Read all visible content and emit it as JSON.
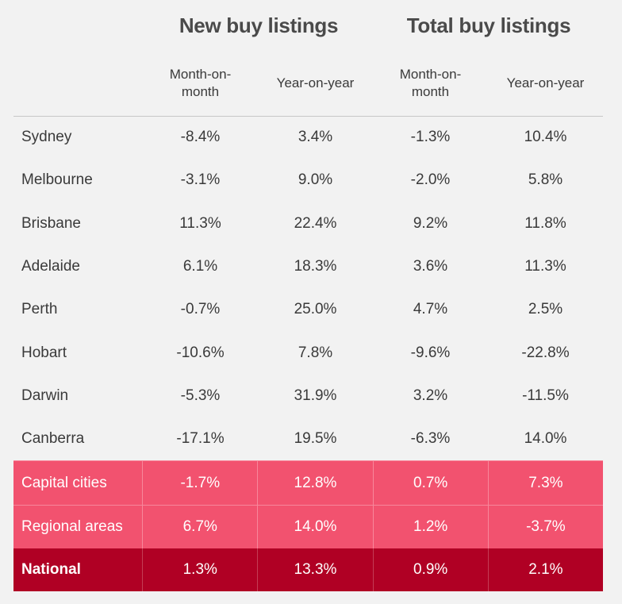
{
  "chart_data": {
    "type": "table",
    "group_headers": [
      "New buy listings",
      "Total buy listings"
    ],
    "sub_headers": [
      "Month-on-\nmonth",
      "Year-on-year",
      "Month-on-\nmonth",
      "Year-on-year"
    ],
    "rows": [
      {
        "label": "Sydney",
        "values": [
          "-8.4%",
          "3.4%",
          "-1.3%",
          "10.4%"
        ],
        "style": "plain"
      },
      {
        "label": "Melbourne",
        "values": [
          "-3.1%",
          "9.0%",
          "-2.0%",
          "5.8%"
        ],
        "style": "plain"
      },
      {
        "label": "Brisbane",
        "values": [
          "11.3%",
          "22.4%",
          "9.2%",
          "11.8%"
        ],
        "style": "plain"
      },
      {
        "label": "Adelaide",
        "values": [
          "6.1%",
          "18.3%",
          "3.6%",
          "11.3%"
        ],
        "style": "plain"
      },
      {
        "label": "Perth",
        "values": [
          "-0.7%",
          "25.0%",
          "4.7%",
          "2.5%"
        ],
        "style": "plain"
      },
      {
        "label": "Hobart",
        "values": [
          "-10.6%",
          "7.8%",
          "-9.6%",
          "-22.8%"
        ],
        "style": "plain"
      },
      {
        "label": "Darwin",
        "values": [
          "-5.3%",
          "31.9%",
          "3.2%",
          "-11.5%"
        ],
        "style": "plain"
      },
      {
        "label": "Canberra",
        "values": [
          "-17.1%",
          "19.5%",
          "-6.3%",
          "14.0%"
        ],
        "style": "plain"
      },
      {
        "label": "Capital cities",
        "values": [
          "-1.7%",
          "12.8%",
          "0.7%",
          "7.3%"
        ],
        "style": "pink"
      },
      {
        "label": "Regional areas",
        "values": [
          "6.7%",
          "14.0%",
          "1.2%",
          "-3.7%"
        ],
        "style": "pink"
      },
      {
        "label": "National",
        "values": [
          "1.3%",
          "13.3%",
          "0.9%",
          "2.1%"
        ],
        "style": "dark"
      }
    ]
  },
  "colors": {
    "background": "#f2f2f2",
    "highlight_pink": "#f2526f",
    "highlight_dark": "#b00024"
  }
}
